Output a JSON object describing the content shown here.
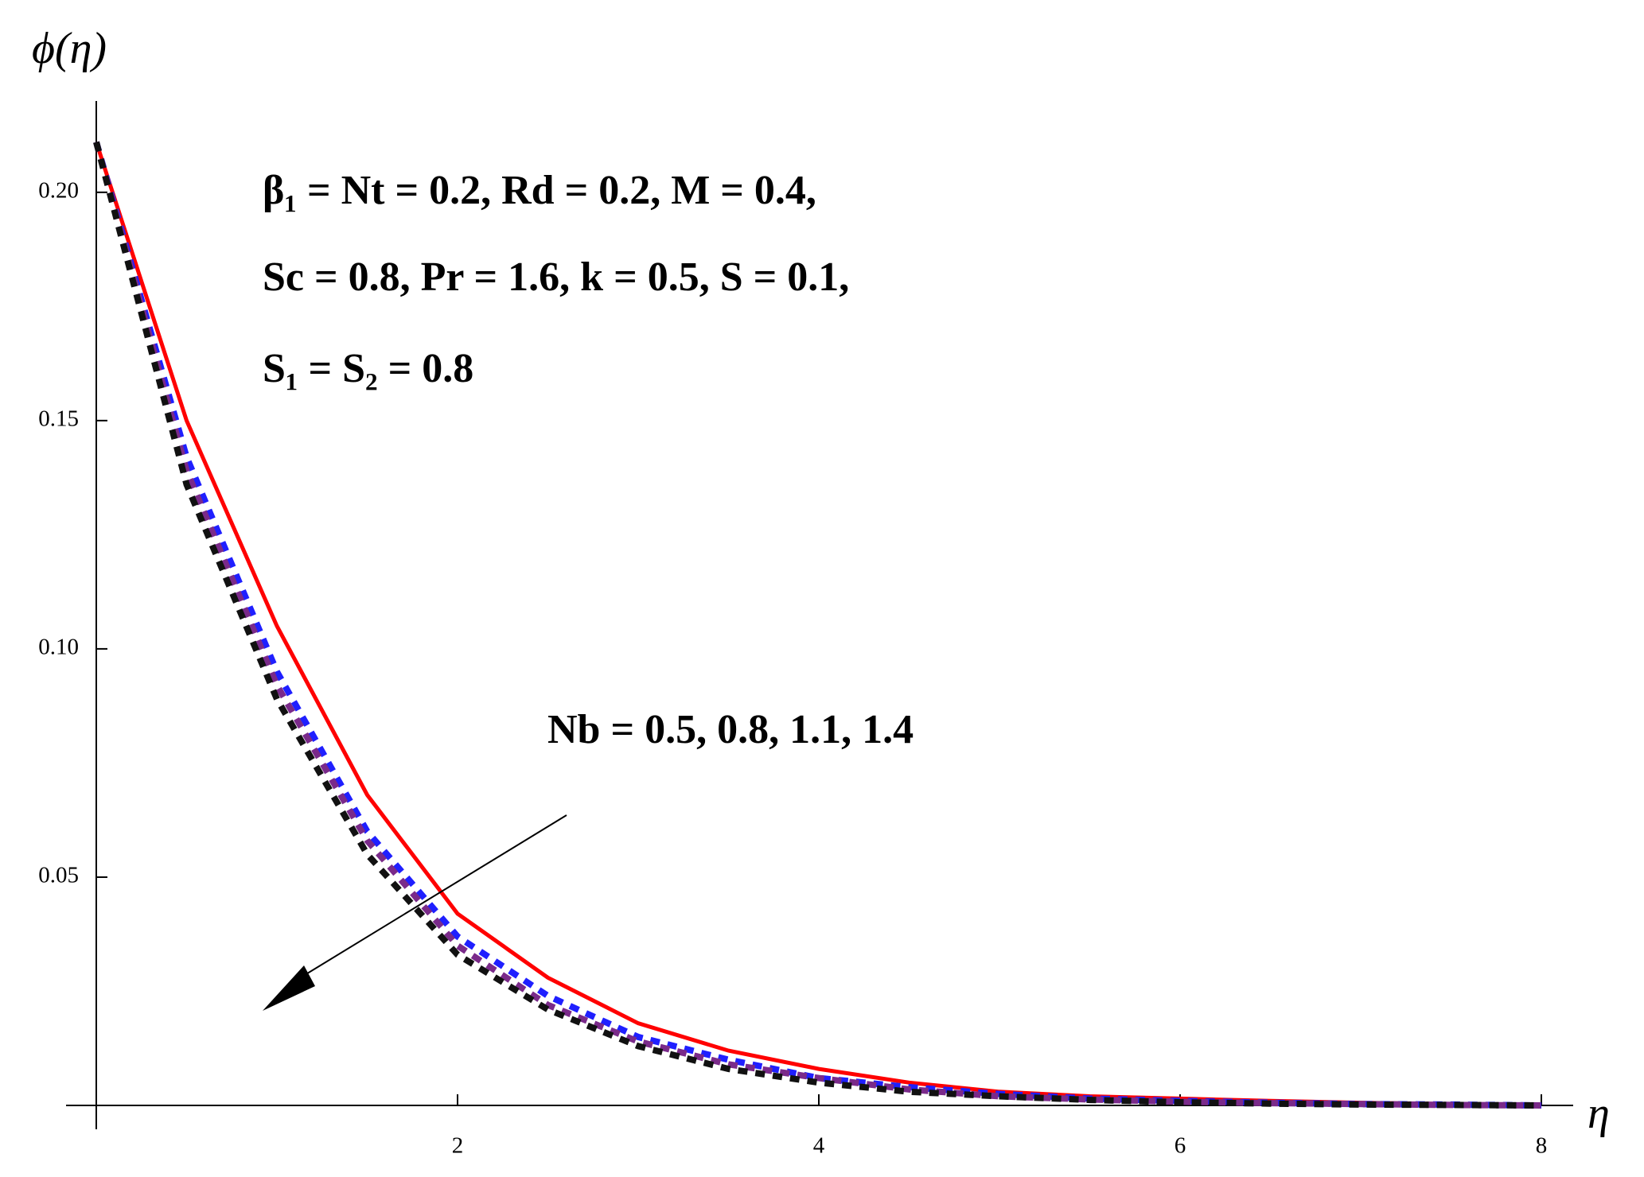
{
  "chart_data": {
    "type": "line",
    "ylabel": "ϕ(η)",
    "xlabel": "η",
    "annotations": [
      "β₁ = Nt = 0.2,  Rd = 0.2,  M = 0.4,",
      "Sc = 0.8, Pr = 1.6,  k = 0.5,  S = 0.1,",
      "S₁ = S₂ = 0.8",
      "Nb = 0.5, 0.8, 1.1, 1.4"
    ],
    "x": [
      0,
      0.5,
      1,
      1.5,
      2,
      2.5,
      3,
      3.5,
      4,
      4.5,
      5,
      5.5,
      6,
      6.5,
      7,
      7.5,
      8
    ],
    "series": [
      {
        "color": "#ff0000",
        "style": "solid",
        "values": [
          0.211,
          0.15,
          0.105,
          0.068,
          0.042,
          0.028,
          0.018,
          0.012,
          0.008,
          0.005,
          0.003,
          0.002,
          0.0015,
          0.001,
          0.0006,
          0.0003,
          0
        ]
      },
      {
        "color": "#1f1fff",
        "style": "dashed",
        "values": [
          0.211,
          0.142,
          0.095,
          0.06,
          0.037,
          0.024,
          0.015,
          0.01,
          0.006,
          0.004,
          0.0025,
          0.0015,
          0.001,
          0.0006,
          0.0003,
          0.0002,
          0
        ]
      },
      {
        "color": "#7a2a8a",
        "style": "dashed",
        "values": [
          0.211,
          0.139,
          0.092,
          0.058,
          0.035,
          0.022,
          0.014,
          0.009,
          0.006,
          0.0035,
          0.002,
          0.0013,
          0.0008,
          0.0005,
          0.0003,
          0.0001,
          0
        ]
      },
      {
        "color": "#111111",
        "style": "dashed",
        "values": [
          0.211,
          0.136,
          0.089,
          0.055,
          0.033,
          0.021,
          0.013,
          0.008,
          0.005,
          0.003,
          0.002,
          0.0012,
          0.0007,
          0.0004,
          0.0002,
          0.0001,
          0
        ]
      }
    ],
    "xlim": [
      0,
      8
    ],
    "xticks": [
      2,
      4,
      6,
      8
    ],
    "ylim": [
      0,
      0.22
    ],
    "yticks": [
      0.05,
      {
        "value": 0.1,
        "label": "0.10"
      },
      0.15,
      {
        "value": 0.2,
        "label": "0.20"
      }
    ]
  }
}
